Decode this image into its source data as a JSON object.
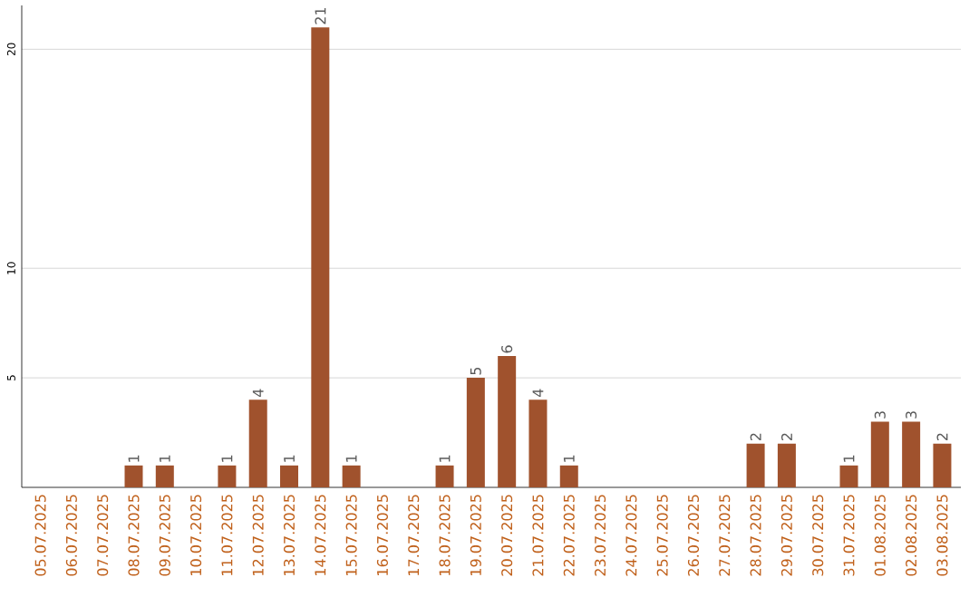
{
  "chart_data": {
    "type": "bar",
    "categories": [
      "05.07.2025",
      "06.07.2025",
      "07.07.2025",
      "08.07.2025",
      "09.07.2025",
      "10.07.2025",
      "11.07.2025",
      "12.07.2025",
      "13.07.2025",
      "14.07.2025",
      "15.07.2025",
      "16.07.2025",
      "17.07.2025",
      "18.07.2025",
      "19.07.2025",
      "20.07.2025",
      "21.07.2025",
      "22.07.2025",
      "23.07.2025",
      "24.07.2025",
      "25.07.2025",
      "26.07.2025",
      "27.07.2025",
      "28.07.2025",
      "29.07.2025",
      "30.07.2025",
      "31.07.2025",
      "01.08.2025",
      "02.08.2025",
      "03.08.2025"
    ],
    "values": [
      0,
      0,
      0,
      1,
      1,
      0,
      1,
      4,
      1,
      21,
      1,
      0,
      0,
      1,
      5,
      6,
      4,
      1,
      0,
      0,
      0,
      0,
      0,
      2,
      2,
      0,
      1,
      3,
      3,
      2
    ],
    "value_labels": [
      null,
      null,
      null,
      "1",
      "1",
      null,
      "1",
      "4",
      "1",
      "21",
      "1",
      null,
      null,
      "1",
      "5",
      "6",
      "4",
      "1",
      null,
      null,
      null,
      null,
      null,
      "2",
      "2",
      null,
      "1",
      "3",
      "3",
      "2"
    ],
    "color": "#a0522d",
    "ylim": [
      0,
      22
    ],
    "yticks": [
      5,
      10,
      20
    ],
    "grid": "y"
  }
}
